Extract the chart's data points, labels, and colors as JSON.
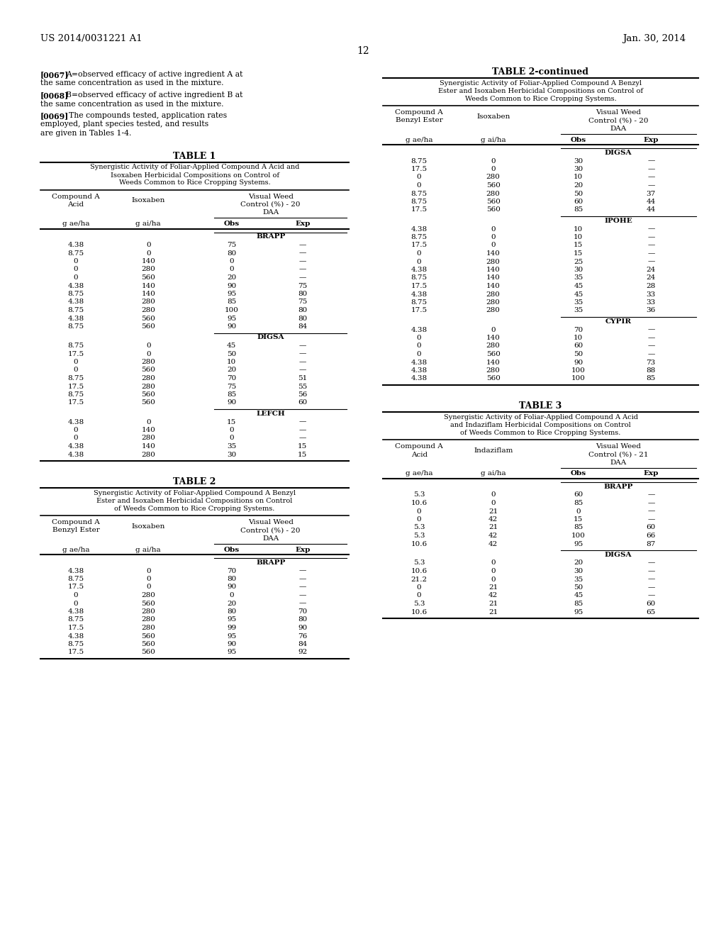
{
  "page_header_left": "US 2014/0031221 A1",
  "page_header_right": "Jan. 30, 2014",
  "page_number": "12",
  "para1_tag": "[0067]",
  "para1_text": "A=observed efficacy of active ingredient A at the same concentration as used in the mixture.",
  "para2_tag": "[0068]",
  "para2_text": "B=observed efficacy of active ingredient B at the same concentration as used in the mixture.",
  "para3_tag": "[0069]",
  "para3_text": "The compounds tested, application rates employed, plant species tested, and results are given in Tables 1-4.",
  "table1": {
    "title": "TABLE 1",
    "subtitle_lines": [
      "Synergistic Activity of Foliar-Applied Compound A Acid and",
      "Isoxaben Herbicidal Compositions on Control of",
      "Weeds Common to Rice Cropping Systems."
    ],
    "header1_line1": "Compound A",
    "header1_line2": "Acid",
    "header2": "Isoxaben",
    "header3_line1": "Visual Weed",
    "header3_line2": "Control (%) - 20",
    "header3_line3": "DAA",
    "unit1": "g ae/ha",
    "unit2": "g ai/ha",
    "unit3": "Obs",
    "unit4": "Exp",
    "sections": [
      {
        "name": "BRAPP",
        "rows": [
          [
            "4.38",
            "0",
            "75",
            "—"
          ],
          [
            "8.75",
            "0",
            "80",
            "—"
          ],
          [
            "0",
            "140",
            "0",
            "—"
          ],
          [
            "0",
            "280",
            "0",
            "—"
          ],
          [
            "0",
            "560",
            "20",
            "—"
          ],
          [
            "4.38",
            "140",
            "90",
            "75"
          ],
          [
            "8.75",
            "140",
            "95",
            "80"
          ],
          [
            "4.38",
            "280",
            "85",
            "75"
          ],
          [
            "8.75",
            "280",
            "100",
            "80"
          ],
          [
            "4.38",
            "560",
            "95",
            "80"
          ],
          [
            "8.75",
            "560",
            "90",
            "84"
          ]
        ]
      },
      {
        "name": "DIGSA",
        "rows": [
          [
            "8.75",
            "0",
            "45",
            "—"
          ],
          [
            "17.5",
            "0",
            "50",
            "—"
          ],
          [
            "0",
            "280",
            "10",
            "—"
          ],
          [
            "0",
            "560",
            "20",
            "—"
          ],
          [
            "8.75",
            "280",
            "70",
            "51"
          ],
          [
            "17.5",
            "280",
            "75",
            "55"
          ],
          [
            "8.75",
            "560",
            "85",
            "56"
          ],
          [
            "17.5",
            "560",
            "90",
            "60"
          ]
        ]
      },
      {
        "name": "LEFCH",
        "rows": [
          [
            "4.38",
            "0",
            "15",
            "—"
          ],
          [
            "0",
            "140",
            "0",
            "—"
          ],
          [
            "0",
            "280",
            "0",
            "—"
          ],
          [
            "4.38",
            "140",
            "35",
            "15"
          ],
          [
            "4.38",
            "280",
            "30",
            "15"
          ]
        ]
      }
    ]
  },
  "table2": {
    "title": "TABLE 2",
    "subtitle_lines": [
      "Synergistic Activity of Foliar-Applied Compound A Benzyl",
      "Ester and Isoxaben Herbicidal Compositions on Control",
      "of Weeds Common to Rice Cropping Systems."
    ],
    "header1_line1": "Compound A",
    "header1_line2": "Benzyl Ester",
    "header2": "Isoxaben",
    "header3_line1": "Visual Weed",
    "header3_line2": "Control (%) - 20",
    "header3_line3": "DAA",
    "unit1": "g ae/ha",
    "unit2": "g ai/ha",
    "unit3": "Obs",
    "unit4": "Exp",
    "sections": [
      {
        "name": "BRAPP",
        "rows": [
          [
            "4.38",
            "0",
            "70",
            "—"
          ],
          [
            "8.75",
            "0",
            "80",
            "—"
          ],
          [
            "17.5",
            "0",
            "90",
            "—"
          ],
          [
            "0",
            "280",
            "0",
            "—"
          ],
          [
            "0",
            "560",
            "20",
            "—"
          ],
          [
            "4.38",
            "280",
            "80",
            "70"
          ],
          [
            "8.75",
            "280",
            "95",
            "80"
          ],
          [
            "17.5",
            "280",
            "99",
            "90"
          ],
          [
            "4.38",
            "560",
            "95",
            "76"
          ],
          [
            "8.75",
            "560",
            "90",
            "84"
          ],
          [
            "17.5",
            "560",
            "95",
            "92"
          ]
        ]
      }
    ]
  },
  "table2cont": {
    "title": "TABLE 2-continued",
    "subtitle_lines": [
      "Synergistic Activity of Foliar-Applied Compound A Benzyl",
      "Ester and Isoxaben Herbicidal Compositions on Control of",
      "Weeds Common to Rice Cropping Systems."
    ],
    "header1_line1": "Compound A",
    "header1_line2": "Benzyl Ester",
    "header2": "Isoxaben",
    "header3_line1": "Visual Weed",
    "header3_line2": "Control (%) - 20",
    "header3_line3": "DAA",
    "unit1": "g ae/ha",
    "unit2": "g ai/ha",
    "unit3": "Obs",
    "unit4": "Exp",
    "sections": [
      {
        "name": "DIGSA",
        "rows": [
          [
            "8.75",
            "0",
            "30",
            "—"
          ],
          [
            "17.5",
            "0",
            "30",
            "—"
          ],
          [
            "0",
            "280",
            "10",
            "—"
          ],
          [
            "0",
            "560",
            "20",
            "—"
          ],
          [
            "8.75",
            "280",
            "50",
            "37"
          ],
          [
            "8.75",
            "560",
            "60",
            "44"
          ],
          [
            "17.5",
            "560",
            "85",
            "44"
          ]
        ]
      },
      {
        "name": "IPOHE",
        "rows": [
          [
            "4.38",
            "0",
            "10",
            "—"
          ],
          [
            "8.75",
            "0",
            "10",
            "—"
          ],
          [
            "17.5",
            "0",
            "15",
            "—"
          ],
          [
            "0",
            "140",
            "15",
            "—"
          ],
          [
            "0",
            "280",
            "25",
            "—"
          ],
          [
            "4.38",
            "140",
            "30",
            "24"
          ],
          [
            "8.75",
            "140",
            "35",
            "24"
          ],
          [
            "17.5",
            "140",
            "45",
            "28"
          ],
          [
            "4.38",
            "280",
            "45",
            "33"
          ],
          [
            "8.75",
            "280",
            "35",
            "33"
          ],
          [
            "17.5",
            "280",
            "35",
            "36"
          ]
        ]
      },
      {
        "name": "CYPIR",
        "rows": [
          [
            "4.38",
            "0",
            "70",
            "—"
          ],
          [
            "0",
            "140",
            "10",
            "—"
          ],
          [
            "0",
            "280",
            "60",
            "—"
          ],
          [
            "0",
            "560",
            "50",
            "—"
          ],
          [
            "4.38",
            "140",
            "90",
            "73"
          ],
          [
            "4.38",
            "280",
            "100",
            "88"
          ],
          [
            "4.38",
            "560",
            "100",
            "85"
          ]
        ]
      }
    ]
  },
  "table3": {
    "title": "TABLE 3",
    "subtitle_lines": [
      "Synergistic Activity of Foliar-Applied Compound A Acid",
      "and Indaziflam Herbicidal Compositions on Control",
      "of Weeds Common to Rice Cropping Systems."
    ],
    "header1_line1": "Compound A",
    "header1_line2": "Acid",
    "header2": "Indaziflam",
    "header3_line1": "Visual Weed",
    "header3_line2": "Control (%) - 21",
    "header3_line3": "DAA",
    "unit1": "g ae/ha",
    "unit2": "g ai/ha",
    "unit3": "Obs",
    "unit4": "Exp",
    "sections": [
      {
        "name": "BRAPP",
        "rows": [
          [
            "5.3",
            "0",
            "60",
            "—"
          ],
          [
            "10.6",
            "0",
            "85",
            "—"
          ],
          [
            "0",
            "21",
            "0",
            "—"
          ],
          [
            "0",
            "42",
            "15",
            "—"
          ],
          [
            "5.3",
            "21",
            "85",
            "60"
          ],
          [
            "5.3",
            "42",
            "100",
            "66"
          ],
          [
            "10.6",
            "42",
            "95",
            "87"
          ]
        ]
      },
      {
        "name": "DIGSA",
        "rows": [
          [
            "5.3",
            "0",
            "20",
            "—"
          ],
          [
            "10.6",
            "0",
            "30",
            "—"
          ],
          [
            "21.2",
            "0",
            "35",
            "—"
          ],
          [
            "0",
            "21",
            "50",
            "—"
          ],
          [
            "0",
            "42",
            "45",
            "—"
          ],
          [
            "5.3",
            "21",
            "85",
            "60"
          ],
          [
            "10.6",
            "21",
            "95",
            "65"
          ]
        ]
      }
    ]
  },
  "bg_color": "#ffffff",
  "text_color": "#000000"
}
